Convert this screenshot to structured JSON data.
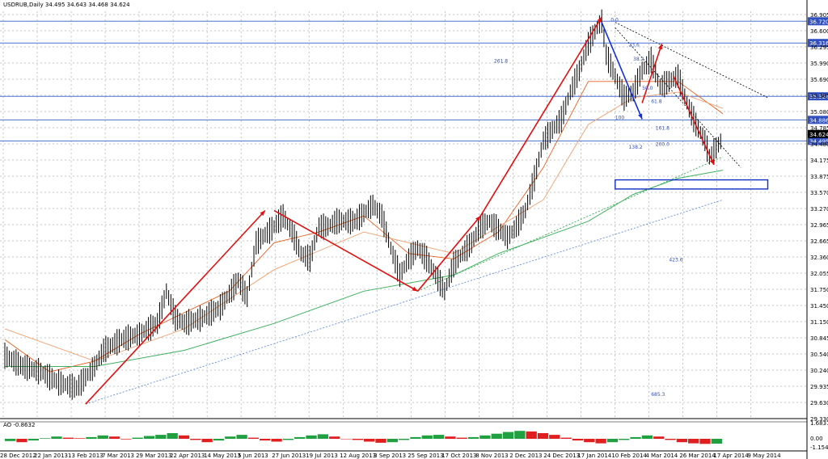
{
  "chart_data": {
    "type": "line",
    "symbol_header": "USDRUB,Daily  34.495 34.643 34.468 34.624",
    "ylim": [
      29.33,
      36.905
    ],
    "y_ticks": [
      "36.905",
      "36.600",
      "36.295",
      "35.990",
      "35.690",
      "35.385",
      "35.080",
      "34.785",
      "34.480",
      "34.175",
      "33.875",
      "33.570",
      "33.270",
      "32.965",
      "32.665",
      "32.360",
      "32.055",
      "31.750",
      "31.450",
      "31.150",
      "30.845",
      "30.540",
      "30.240",
      "29.935",
      "29.630",
      "29.330"
    ],
    "horizontal_levels": [
      {
        "value": 36.72,
        "label": "36.720"
      },
      {
        "value": 36.316,
        "label": "36.316"
      },
      {
        "value": 35.324,
        "label": "35.324"
      },
      {
        "value": 34.886,
        "label": "34.886"
      },
      {
        "value": 34.495,
        "label": "34.495"
      }
    ],
    "last_price": {
      "value": 34.624,
      "label": "34.624"
    },
    "x_dates": [
      "28 Dec 2012",
      "22 Jan 2013",
      "13 Feb 2013",
      "7 Mar 2013",
      "29 Mar 2013",
      "22 Apr 2013",
      "14 May 2013",
      "5 Jun 2013",
      "27 Jun 2013",
      "19 Jul 2013",
      "12 Aug 2013",
      "3 Sep 2013",
      "25 Sep 2013",
      "17 Oct 2013",
      "8 Nov 2013",
      "2 Dec 2013",
      "24 Dec 2013",
      "17 Jan 2014",
      "10 Feb 2014",
      "4 Mar 2014",
      "26 Mar 2014",
      "17 Apr 2014",
      "9 May 2014"
    ],
    "price_path": [
      [
        0,
        30.5
      ],
      [
        2,
        30.3
      ],
      [
        4,
        30.2
      ],
      [
        6,
        30.0
      ],
      [
        8,
        29.9
      ],
      [
        10,
        30.3
      ],
      [
        11,
        30.6
      ],
      [
        13,
        30.8
      ],
      [
        15,
        30.9
      ],
      [
        17,
        31.1
      ],
      [
        18,
        31.7
      ],
      [
        19,
        31.2
      ],
      [
        20,
        31.1
      ],
      [
        22,
        31.2
      ],
      [
        24,
        31.4
      ],
      [
        26,
        31.9
      ],
      [
        27,
        31.6
      ],
      [
        28,
        32.6
      ],
      [
        30,
        32.9
      ],
      [
        31,
        33.1
      ],
      [
        32,
        32.8
      ],
      [
        33,
        32.4
      ],
      [
        34,
        32.3
      ],
      [
        35,
        32.9
      ],
      [
        36,
        32.9
      ],
      [
        37,
        33.0
      ],
      [
        39,
        33.0
      ],
      [
        41,
        33.3
      ],
      [
        42,
        33.1
      ],
      [
        43,
        32.5
      ],
      [
        44,
        32.0
      ],
      [
        45,
        32.3
      ],
      [
        46,
        32.5
      ],
      [
        47,
        32.3
      ],
      [
        48,
        32.0
      ],
      [
        49,
        31.7
      ],
      [
        50,
        32.2
      ],
      [
        51,
        32.4
      ],
      [
        52,
        32.6
      ],
      [
        53,
        32.9
      ],
      [
        54,
        33.0
      ],
      [
        56,
        32.7
      ],
      [
        57,
        32.9
      ],
      [
        58,
        33.2
      ],
      [
        59,
        33.8
      ],
      [
        60,
        34.5
      ],
      [
        61,
        34.7
      ],
      [
        62,
        34.9
      ],
      [
        63,
        35.4
      ],
      [
        64,
        35.8
      ],
      [
        65,
        36.3
      ],
      [
        66,
        36.6
      ],
      [
        66.5,
        36.72
      ],
      [
        67,
        36.1
      ],
      [
        68,
        35.7
      ],
      [
        69,
        35.3
      ],
      [
        70,
        35.4
      ],
      [
        71,
        35.8
      ],
      [
        72,
        36.0
      ],
      [
        73,
        35.5
      ],
      [
        74,
        35.6
      ],
      [
        75,
        35.7
      ],
      [
        76,
        35.2
      ],
      [
        77,
        34.8
      ],
      [
        78,
        34.5
      ],
      [
        78.5,
        34.2
      ],
      [
        79,
        34.3
      ],
      [
        80,
        34.55
      ]
    ],
    "ma_fast": [
      [
        0,
        30.8
      ],
      [
        5,
        30.2
      ],
      [
        10,
        30.4
      ],
      [
        15,
        30.9
      ],
      [
        20,
        31.3
      ],
      [
        25,
        31.7
      ],
      [
        30,
        32.6
      ],
      [
        35,
        32.8
      ],
      [
        40,
        33.1
      ],
      [
        45,
        32.4
      ],
      [
        50,
        32.3
      ],
      [
        55,
        32.8
      ],
      [
        60,
        34.0
      ],
      [
        65,
        35.6
      ],
      [
        70,
        35.6
      ],
      [
        75,
        35.6
      ],
      [
        80,
        35.0
      ]
    ],
    "ma_mid": [
      [
        0,
        31.0
      ],
      [
        10,
        30.4
      ],
      [
        20,
        31.0
      ],
      [
        30,
        32.1
      ],
      [
        40,
        32.8
      ],
      [
        50,
        32.4
      ],
      [
        60,
        33.4
      ],
      [
        65,
        34.8
      ],
      [
        70,
        35.3
      ],
      [
        75,
        35.4
      ],
      [
        80,
        35.1
      ]
    ],
    "ma_slow": [
      [
        0,
        30.3
      ],
      [
        10,
        30.3
      ],
      [
        20,
        30.6
      ],
      [
        30,
        31.1
      ],
      [
        40,
        31.7
      ],
      [
        50,
        32.0
      ],
      [
        55,
        32.4
      ],
      [
        60,
        32.7
      ],
      [
        65,
        33.0
      ],
      [
        70,
        33.5
      ],
      [
        75,
        33.8
      ],
      [
        80,
        33.95
      ]
    ],
    "wave_arrows": [
      {
        "from": [
          9,
          29.6
        ],
        "to": [
          29,
          33.2
        ],
        "color": "#e01010"
      },
      {
        "from": [
          30,
          33.2
        ],
        "to": [
          46,
          31.7
        ],
        "color": "#e01010"
      },
      {
        "from": [
          46,
          31.7
        ],
        "to": [
          53,
          33.1
        ],
        "color": "#e01010"
      },
      {
        "from": [
          53,
          33.1
        ],
        "to": [
          66.5,
          36.8
        ],
        "color": "#e01010"
      },
      {
        "from": [
          66.5,
          36.7
        ],
        "to": [
          71,
          34.9
        ],
        "color": "#1030e0"
      },
      {
        "from": [
          71,
          35.2
        ],
        "to": [
          73.2,
          36.3
        ],
        "color": "#e01010"
      },
      {
        "from": [
          74.5,
          35.7
        ],
        "to": [
          79,
          34.05
        ],
        "color": "#e01010"
      }
    ],
    "fib_labels": [
      "0.0",
      "23.6",
      "38.2",
      "50.0",
      "61.8",
      "100",
      "138.2",
      "161.8",
      "200.0",
      "261.8",
      "423.6",
      "685.3"
    ],
    "target_zone": {
      "from_x": 68,
      "to_x": 85,
      "ylow": 33.6,
      "yhigh": 33.77
    },
    "oscillator": {
      "label": "AO -0.8632",
      "y_ticks": [
        "1.6837",
        "0.00",
        "-1.1545"
      ],
      "values": [
        -0.4,
        -0.6,
        -0.3,
        0.1,
        0.4,
        0.2,
        0.1,
        0.3,
        0.6,
        0.4,
        -0.1,
        0.2,
        0.5,
        0.7,
        1.0,
        0.6,
        -0.2,
        -0.6,
        -0.3,
        0.4,
        0.7,
        0.2,
        -0.3,
        -0.5,
        -0.2,
        0.3,
        0.6,
        0.8,
        0.4,
        0.0,
        -0.2,
        -0.5,
        -0.7,
        -0.6,
        -0.2,
        0.3,
        0.6,
        0.7,
        0.4,
        0.2,
        0.3,
        0.6,
        0.9,
        1.2,
        1.4,
        1.3,
        1.0,
        0.7,
        0.2,
        -0.3,
        -0.6,
        -0.8,
        -0.6,
        -0.2,
        0.3,
        0.6,
        0.4,
        -0.2,
        -0.6,
        -0.8,
        -0.9,
        -0.86
      ]
    }
  }
}
